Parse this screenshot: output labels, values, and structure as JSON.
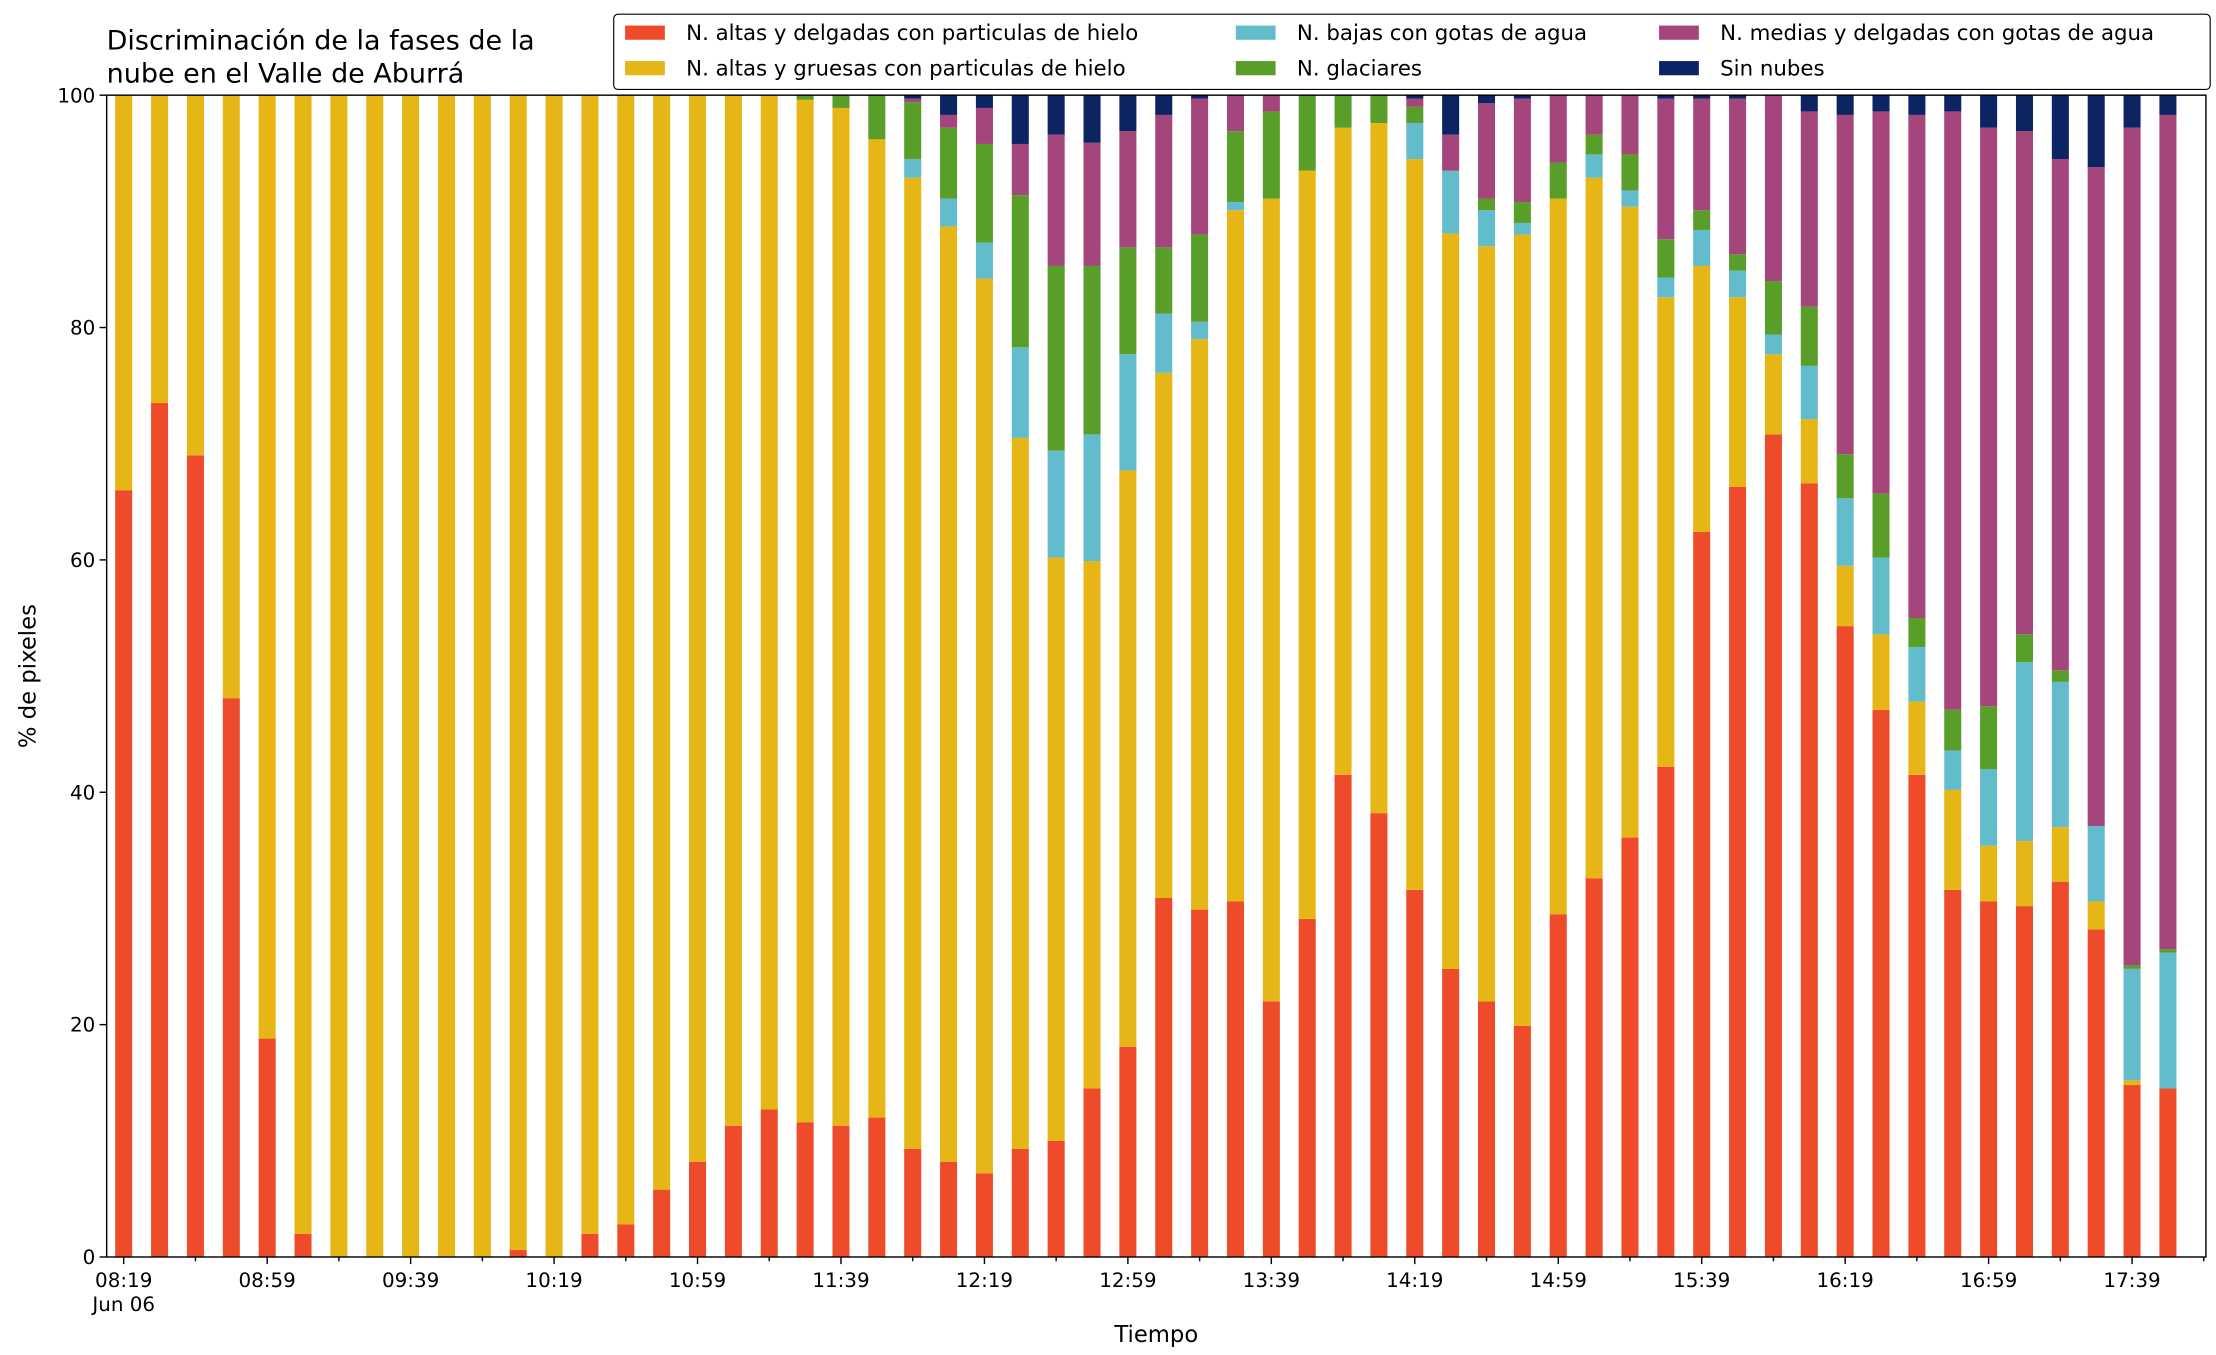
{
  "chart_data": {
    "type": "stacked_bar",
    "title": [
      "Discriminación de la fases de la",
      "nube en el Valle de Aburrá"
    ],
    "xlabel": "Tiempo",
    "ylabel": "% de pixeles",
    "x_sublabel": "Jun 06",
    "categories": [
      "08:19",
      null,
      null,
      null,
      "08:59",
      null,
      null,
      null,
      "09:39",
      null,
      null,
      null,
      "10:19",
      null,
      null,
      null,
      "10:59",
      null,
      null,
      null,
      "11:39",
      null,
      null,
      null,
      "12:19",
      null,
      null,
      null,
      "12:59",
      null,
      null,
      null,
      "13:39",
      null,
      null,
      null,
      "14:19",
      null,
      null,
      null,
      "14:59",
      null,
      null,
      null,
      "15:39",
      null,
      null,
      null,
      "16:19",
      null,
      null,
      null,
      "16:59",
      null,
      null,
      null,
      "17:39",
      null
    ],
    "ylim": [
      0,
      100
    ],
    "yticks": [
      0,
      20,
      40,
      60,
      80,
      100
    ],
    "grid": false,
    "legend": "upper right",
    "series": [
      {
        "name": "N. altas y delgadas con particulas de hielo",
        "color": "#ee4b2b",
        "values": [
          66,
          73.5,
          69,
          48.1,
          18.8,
          2,
          0,
          0,
          0,
          0,
          0,
          0.6,
          0,
          2,
          2.8,
          5.8,
          8.2,
          11.3,
          12.7,
          11.6,
          11.3,
          12,
          9.3,
          8.2,
          7.2,
          9.3,
          10,
          14.5,
          18.1,
          30.9,
          29.9,
          30.6,
          22,
          29.1,
          41.5,
          38.2,
          31.6,
          24.8,
          22,
          19.9,
          29.5,
          32.6,
          36.1,
          42.2,
          62.4,
          66.3,
          70.8,
          66.6,
          54.3,
          47.1,
          41.5,
          31.6,
          30.6,
          30.2,
          32.3,
          28.2,
          14.8,
          14.5
        ]
      },
      {
        "name": "N. altas y gruesas con particulas de hielo",
        "color": "#e5b616",
        "values": [
          34,
          26.5,
          31,
          51.9,
          81.2,
          98,
          100,
          100,
          100,
          100,
          100,
          99.4,
          100,
          98,
          97.2,
          94.2,
          91.8,
          88.7,
          87.3,
          88,
          87.6,
          84.2,
          83.6,
          80.5,
          77,
          61.2,
          50.2,
          45.4,
          49.6,
          45.2,
          49.1,
          59.5,
          69.1,
          64.4,
          55.7,
          59.4,
          62.9,
          63.3,
          65,
          68.1,
          61.6,
          60.3,
          54.3,
          40.4,
          22.9,
          16.3,
          6.9,
          5.5,
          5.2,
          6.5,
          6.3,
          8.6,
          4.8,
          5.6,
          4.7,
          2.4,
          0.4,
          0
        ]
      },
      {
        "name": "N. bajas con gotas de agua",
        "color": "#63bccb",
        "values": [
          0,
          0,
          0,
          0,
          0,
          0,
          0,
          0,
          0,
          0,
          0,
          0,
          0,
          0,
          0,
          0,
          0,
          0,
          0,
          0,
          0,
          0,
          1.6,
          2.4,
          3.1,
          7.8,
          9.2,
          10.9,
          10,
          5.1,
          1.5,
          0.7,
          0,
          0,
          0,
          0,
          3.1,
          5.4,
          3.1,
          1,
          0,
          2,
          1.4,
          1.7,
          3.1,
          2.3,
          1.7,
          4.6,
          5.8,
          6.6,
          4.7,
          3.4,
          6.6,
          15.4,
          12.5,
          6.5,
          9.6,
          11.7
        ]
      },
      {
        "name": "N. glaciares",
        "color": "#5a9e2a",
        "values": [
          0,
          0,
          0,
          0,
          0,
          0,
          0,
          0,
          0,
          0,
          0,
          0,
          0,
          0,
          0,
          0,
          0,
          0,
          0,
          0.4,
          1.1,
          3.8,
          4.9,
          6.1,
          8.5,
          13.1,
          15.9,
          14.5,
          9.2,
          5.7,
          7.5,
          6.1,
          7.5,
          6.5,
          2.8,
          2.4,
          1.4,
          0,
          1,
          1.8,
          3.1,
          1.7,
          3.1,
          3.3,
          1.7,
          1.4,
          4.6,
          5.1,
          3.8,
          5.5,
          2.5,
          3.5,
          5.4,
          2.4,
          1,
          0,
          0.3,
          0.3
        ]
      },
      {
        "name": "N. medias y delgadas con gotas de agua",
        "color": "#a4457c",
        "values": [
          0,
          0,
          0,
          0,
          0,
          0,
          0,
          0,
          0,
          0,
          0,
          0,
          0,
          0,
          0,
          0,
          0,
          0,
          0,
          0,
          0,
          0,
          0.3,
          1.1,
          3.1,
          4.4,
          11.3,
          10.6,
          10,
          11.4,
          11.7,
          3.1,
          1.4,
          0,
          0,
          0,
          0.7,
          3.1,
          8.2,
          8.9,
          5.8,
          3.4,
          5.1,
          12.1,
          9.6,
          13.4,
          16,
          16.8,
          29.2,
          32.9,
          43.3,
          51.5,
          49.8,
          43.3,
          44,
          56.7,
          72.1,
          71.8
        ]
      },
      {
        "name": "Sin nubes",
        "color": "#0c2461",
        "values": [
          0,
          0,
          0,
          0,
          0,
          0,
          0,
          0,
          0,
          0,
          0,
          0,
          0,
          0,
          0,
          0,
          0,
          0,
          0,
          0,
          0,
          0,
          0.3,
          1.7,
          1.1,
          4.2,
          3.4,
          4.1,
          3.1,
          1.7,
          0.3,
          0,
          0,
          0,
          0,
          0,
          0.3,
          3.4,
          0.7,
          0.3,
          0,
          0,
          0,
          0.3,
          0.3,
          0.3,
          0,
          1.4,
          1.7,
          1.4,
          1.7,
          1.4,
          2.8,
          3.1,
          5.5,
          6.2,
          2.8,
          1.7
        ]
      }
    ]
  }
}
